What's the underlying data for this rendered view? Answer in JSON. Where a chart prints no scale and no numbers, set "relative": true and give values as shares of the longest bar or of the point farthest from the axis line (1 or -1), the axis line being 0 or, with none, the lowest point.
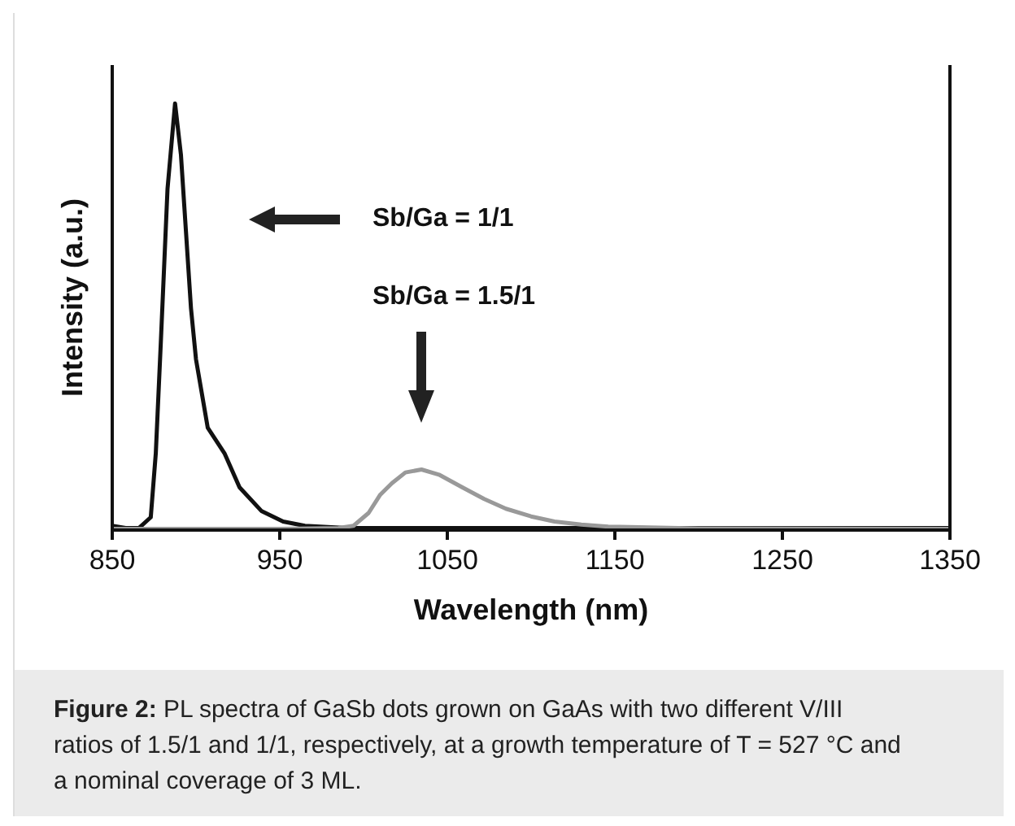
{
  "chart_data": {
    "type": "line",
    "relative": true,
    "xlabel": "Wavelength (nm)",
    "ylabel": "Intensity (a.u.)",
    "xlim": [
      850,
      1350
    ],
    "xticks": [
      850,
      950,
      1050,
      1150,
      1250,
      1350
    ],
    "marker": "none",
    "line_style": "solid",
    "legend": false,
    "grid": false,
    "series": [
      {
        "color": "#111111",
        "x": [
          850,
          858,
          866,
          873,
          876,
          879,
          883,
          887.5,
          891,
          894,
          897,
          900,
          907,
          917,
          926,
          939,
          952,
          965,
          990,
          1050,
          1150,
          1250,
          1350
        ],
        "values": [
          0.01,
          0.005,
          0.005,
          0.03,
          0.18,
          0.44,
          0.8,
          1,
          0.88,
          0.7,
          0.52,
          0.4,
          0.24,
          0.18,
          0.1,
          0.045,
          0.02,
          0.01,
          0.005,
          0.005,
          0.005,
          0.005,
          0.005
        ]
      },
      {
        "color": "#999999",
        "x": [
          850,
          950,
          985,
          994,
          1003,
          1010,
          1017,
          1025,
          1034.6,
          1045,
          1059,
          1072,
          1085,
          1100,
          1114,
          1130,
          1146,
          1200,
          1350
        ],
        "values": [
          0.003,
          0.003,
          0.005,
          0.01,
          0.04,
          0.083,
          0.11,
          0.135,
          0.142,
          0.13,
          0.1,
          0.073,
          0.05,
          0.032,
          0.02,
          0.013,
          0.008,
          0.004,
          0.003
        ]
      }
    ],
    "annotations": [
      "Sb/Ga = 1/1",
      "Sb/Ga = 1.5/1",
      "Figure 2: PL spectra of GaSb dots grown on GaAs with two different V/III ratios of 1.5/1 and 1/1, respectively, at a growth temperature of T = 527 °C and a nominal coverage of 3 ML."
    ]
  }
}
